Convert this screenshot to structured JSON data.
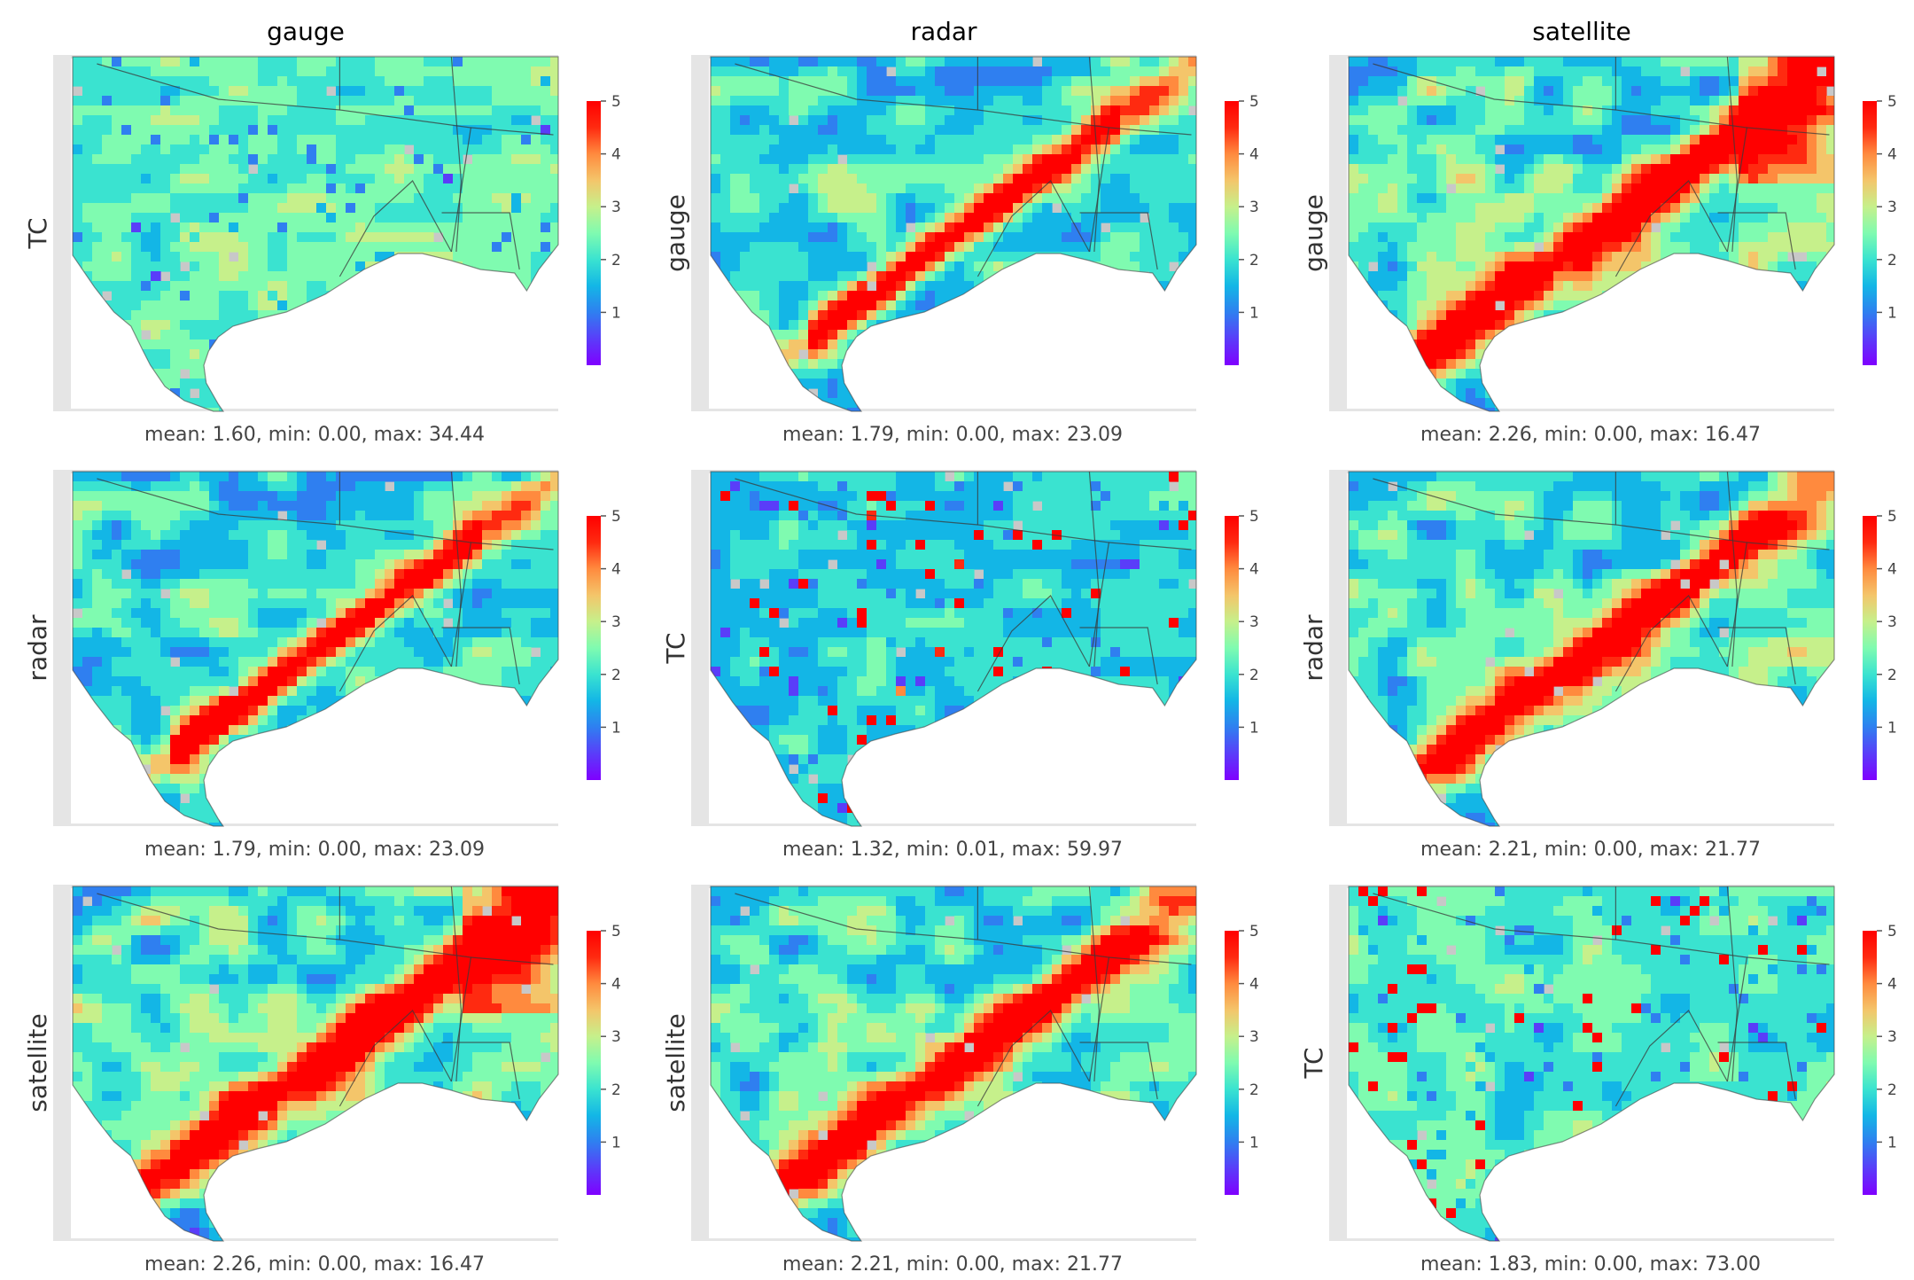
{
  "figure": {
    "column_titles": [
      "gauge",
      "radar",
      "satellite"
    ],
    "colorbar_ticks": [
      "1",
      "2",
      "3",
      "4",
      "5"
    ],
    "colormap": [
      "#7f00ff",
      "#5a3df9",
      "#2f7ff0",
      "#13b6e6",
      "#3ae3d0",
      "#7ffbb0",
      "#c6f08b",
      "#f4c56a",
      "#ff8a3e",
      "#ff2a10",
      "#ff0000"
    ],
    "no_data_color": "#c8c8c8",
    "frame_color": "#e5e5e5"
  },
  "chart_data": [
    {
      "type": "heatmap",
      "row": 0,
      "col": 0,
      "ylabel": "TC",
      "stats": "mean: 1.60, min: 0.00, max: 34.44",
      "colorbar": {
        "min": 0,
        "max": 5,
        "ticks": [
          1,
          2,
          3,
          4,
          5
        ]
      },
      "pattern": "tc_gauge",
      "mean": 1.6,
      "min": 0.0,
      "max": 34.44
    },
    {
      "type": "heatmap",
      "row": 0,
      "col": 1,
      "ylabel": "gauge",
      "stats": "mean: 1.79, min: 0.00, max: 23.09",
      "colorbar": {
        "min": 0,
        "max": 5,
        "ticks": [
          1,
          2,
          3,
          4,
          5
        ]
      },
      "pattern": "radar",
      "mean": 1.79,
      "min": 0.0,
      "max": 23.09
    },
    {
      "type": "heatmap",
      "row": 0,
      "col": 2,
      "ylabel": "gauge",
      "stats": "mean: 2.26, min: 0.00, max: 16.47",
      "colorbar": {
        "min": 0,
        "max": 5,
        "ticks": [
          1,
          2,
          3,
          4,
          5
        ]
      },
      "pattern": "satellite",
      "mean": 2.26,
      "min": 0.0,
      "max": 16.47
    },
    {
      "type": "heatmap",
      "row": 1,
      "col": 0,
      "ylabel": "radar",
      "stats": "mean: 1.79, min: 0.00, max: 23.09",
      "colorbar": {
        "min": 0,
        "max": 5,
        "ticks": [
          1,
          2,
          3,
          4,
          5
        ]
      },
      "pattern": "radar",
      "mean": 1.79,
      "min": 0.0,
      "max": 23.09
    },
    {
      "type": "heatmap",
      "row": 1,
      "col": 1,
      "ylabel": "TC",
      "stats": "mean: 1.32, min: 0.01, max: 59.97",
      "colorbar": {
        "min": 0,
        "max": 5,
        "ticks": [
          1,
          2,
          3,
          4,
          5
        ]
      },
      "pattern": "tc_radar",
      "mean": 1.32,
      "min": 0.01,
      "max": 59.97
    },
    {
      "type": "heatmap",
      "row": 1,
      "col": 2,
      "ylabel": "radar",
      "stats": "mean: 2.21, min: 0.00, max: 21.77",
      "colorbar": {
        "min": 0,
        "max": 5,
        "ticks": [
          1,
          2,
          3,
          4,
          5
        ]
      },
      "pattern": "radar_sat",
      "mean": 2.21,
      "min": 0.0,
      "max": 21.77
    },
    {
      "type": "heatmap",
      "row": 2,
      "col": 0,
      "ylabel": "satellite",
      "stats": "mean: 2.26, min: 0.00, max: 16.47",
      "colorbar": {
        "min": 0,
        "max": 5,
        "ticks": [
          1,
          2,
          3,
          4,
          5
        ]
      },
      "pattern": "satellite",
      "mean": 2.26,
      "min": 0.0,
      "max": 16.47
    },
    {
      "type": "heatmap",
      "row": 2,
      "col": 1,
      "ylabel": "satellite",
      "stats": "mean: 2.21, min: 0.00, max: 21.77",
      "colorbar": {
        "min": 0,
        "max": 5,
        "ticks": [
          1,
          2,
          3,
          4,
          5
        ]
      },
      "pattern": "radar_sat",
      "mean": 2.21,
      "min": 0.0,
      "max": 21.77
    },
    {
      "type": "heatmap",
      "row": 2,
      "col": 2,
      "ylabel": "TC",
      "stats": "mean: 1.83, min: 0.00, max: 73.00",
      "colorbar": {
        "min": 0,
        "max": 5,
        "ticks": [
          1,
          2,
          3,
          4,
          5
        ]
      },
      "pattern": "tc_sat",
      "mean": 1.83,
      "min": 0.0,
      "max": 73.0
    }
  ]
}
